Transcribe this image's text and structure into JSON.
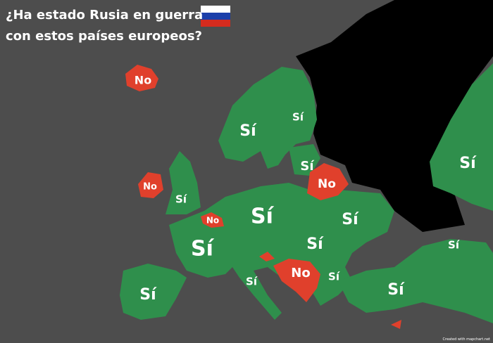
{
  "title": [
    "¿Ha estado Rusia en guerra",
    "con estos países europeos?"
  ],
  "labels": [
    "No",
    "Sí",
    "Sí",
    "Sí",
    "No",
    "No",
    "Sí",
    "No",
    "Sí",
    "Sí",
    "Sí",
    "Sí",
    "Sí",
    "No",
    "Sí",
    "Sí",
    "Sí",
    "Sí",
    "Sí"
  ],
  "credit": "Created with mapchart.net"
}
